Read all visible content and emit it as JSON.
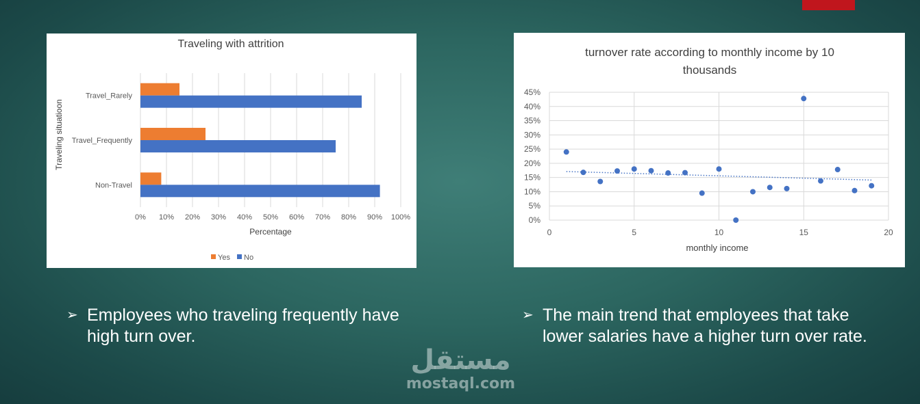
{
  "slide": {
    "accent_color": "#c0161d",
    "bullets": [
      "Employees who traveling frequently have high turn over.",
      "The main trend that employees that take lower salaries have a higher turn over rate."
    ],
    "bullet_glyph": "➢",
    "watermark": {
      "arabic": "مستقل",
      "latin": "mostaql.com"
    }
  },
  "chart_data": [
    {
      "type": "bar",
      "orientation": "horizontal",
      "title": "Traveling with attrition",
      "xlabel": "Percentage",
      "ylabel": "Traveling situatioon",
      "categories": [
        "Travel_Rarely",
        "Travel_Frequently",
        "Non-Travel"
      ],
      "series": [
        {
          "name": "Yes",
          "color": "#ed7d31",
          "values": [
            15,
            25,
            8
          ]
        },
        {
          "name": "No",
          "color": "#4472c4",
          "values": [
            85,
            75,
            92
          ]
        }
      ],
      "xlim": [
        0,
        100
      ],
      "x_ticks": [
        "0%",
        "10%",
        "20%",
        "30%",
        "40%",
        "50%",
        "60%",
        "70%",
        "80%",
        "90%",
        "100%"
      ],
      "grid": true,
      "legend": "bottom"
    },
    {
      "type": "scatter",
      "title": "turnover rate according to monthly income by 10 thousands",
      "xlabel": "monthly income",
      "ylabel": "",
      "color": "#4472c4",
      "points": [
        [
          1,
          24
        ],
        [
          2,
          16.8
        ],
        [
          3,
          13.6
        ],
        [
          4,
          17.3
        ],
        [
          5,
          18
        ],
        [
          6,
          17.4
        ],
        [
          7,
          16.6
        ],
        [
          8,
          16.7
        ],
        [
          9,
          9.5
        ],
        [
          10,
          18
        ],
        [
          11,
          0
        ],
        [
          12,
          10
        ],
        [
          13,
          11.5
        ],
        [
          14,
          11.1
        ],
        [
          15,
          42.8
        ],
        [
          16,
          13.8
        ],
        [
          17,
          17.8
        ],
        [
          18,
          10.4
        ],
        [
          19,
          12.1
        ]
      ],
      "trendline": {
        "type": "linear",
        "from": [
          1,
          17.1
        ],
        "to": [
          19,
          14.1
        ]
      },
      "xlim": [
        0,
        20
      ],
      "ylim": [
        0,
        45
      ],
      "x_ticks": [
        "0",
        "5",
        "10",
        "15",
        "20"
      ],
      "y_ticks": [
        "0%",
        "5%",
        "10%",
        "15%",
        "20%",
        "25%",
        "30%",
        "35%",
        "40%",
        "45%"
      ],
      "grid": true
    }
  ]
}
